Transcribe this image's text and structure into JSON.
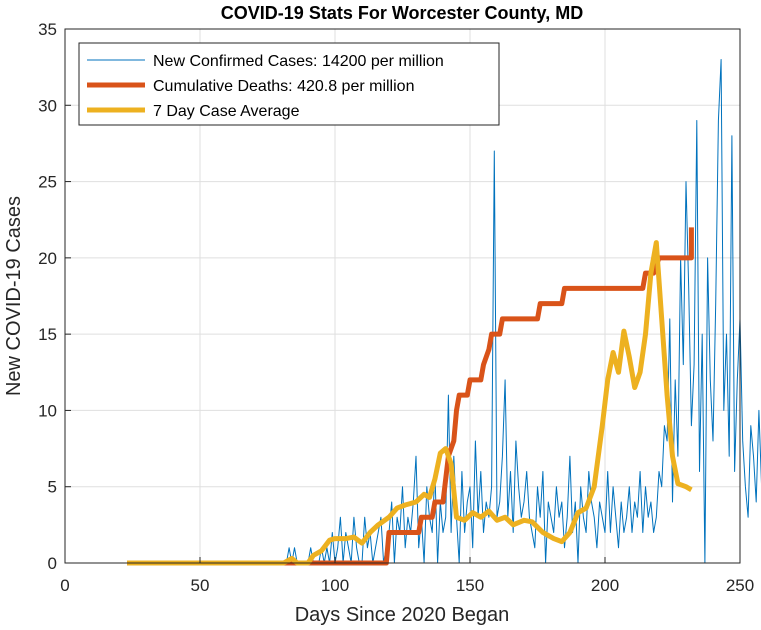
{
  "chart_data": {
    "type": "line",
    "title": "COVID-19 Stats For Worcester County, MD",
    "xlabel": "Days Since 2020 Began",
    "ylabel": "New COVID-19 Cases",
    "xlim": [
      0,
      250
    ],
    "ylim": [
      0,
      35
    ],
    "xticks": [
      "0",
      "50",
      "100",
      "150",
      "200",
      "250"
    ],
    "yticks": [
      "0",
      "5",
      "10",
      "15",
      "20",
      "25",
      "30",
      "35"
    ],
    "grid": true,
    "legend_position": "top-left",
    "colors": {
      "new_cases": "#0072BD",
      "deaths": "#D95319",
      "average": "#EDB120"
    },
    "series": [
      {
        "name": "New Confirmed Cases: 14200 per million",
        "x_start": 82,
        "values": [
          0,
          1,
          0,
          1,
          0,
          0,
          0,
          0,
          0,
          1,
          0,
          0,
          0,
          1,
          0,
          1,
          0,
          2,
          0,
          1,
          3,
          0,
          2,
          1,
          0,
          3,
          1,
          0,
          0,
          3,
          1,
          2,
          0,
          1,
          2,
          3,
          0,
          1,
          2,
          4,
          0,
          3,
          2,
          5,
          1,
          3,
          2,
          4,
          7,
          1,
          3,
          0,
          5,
          3,
          2,
          6,
          0,
          4,
          2,
          3,
          11,
          2,
          7,
          3,
          0,
          6,
          2,
          4,
          5,
          1,
          8,
          3,
          6,
          2,
          4,
          3,
          5,
          27,
          3,
          4,
          7,
          12,
          3,
          6,
          2,
          8,
          5,
          3,
          4,
          6,
          3,
          2,
          1,
          5,
          3,
          6,
          0,
          4,
          3,
          2,
          5,
          3,
          4,
          1,
          3,
          7,
          2,
          4,
          0,
          5,
          3,
          2,
          6,
          4,
          3,
          1,
          4,
          3,
          2,
          6,
          2,
          5,
          3,
          1,
          4,
          2,
          3,
          5,
          2,
          4,
          3,
          6,
          2,
          5,
          3,
          4,
          2,
          3,
          6,
          5,
          9,
          8,
          16,
          4,
          12,
          7,
          20,
          13,
          25,
          18,
          9,
          13,
          29,
          6,
          15,
          0,
          20,
          12,
          8,
          17,
          29,
          33,
          10,
          15,
          7,
          28,
          6,
          12,
          16,
          8,
          5,
          3,
          9,
          7,
          4,
          10,
          5,
          2,
          3,
          4
        ],
        "color": "#0072BD"
      },
      {
        "name": "Cumulative Deaths: 420.8 per million",
        "points": [
          [
            23,
            0
          ],
          [
            119,
            0
          ],
          [
            120,
            2
          ],
          [
            131,
            2
          ],
          [
            132,
            3
          ],
          [
            136,
            3
          ],
          [
            137,
            4
          ],
          [
            140,
            4
          ],
          [
            142,
            7
          ],
          [
            144,
            8
          ],
          [
            145,
            10
          ],
          [
            146,
            11
          ],
          [
            149,
            11
          ],
          [
            150,
            12
          ],
          [
            154,
            12
          ],
          [
            155,
            13
          ],
          [
            157,
            14
          ],
          [
            158,
            15
          ],
          [
            161,
            15
          ],
          [
            162,
            16
          ],
          [
            175,
            16
          ],
          [
            176,
            17
          ],
          [
            184,
            17
          ],
          [
            185,
            18
          ],
          [
            214,
            18
          ],
          [
            215,
            19
          ],
          [
            218,
            19
          ],
          [
            220,
            20
          ],
          [
            232,
            20
          ],
          [
            232,
            22
          ]
        ],
        "color": "#D95319"
      },
      {
        "name": "7 Day Case Average",
        "points": [
          [
            23,
            0
          ],
          [
            81,
            0
          ],
          [
            84,
            0.3
          ],
          [
            86,
            0
          ],
          [
            90,
            0
          ],
          [
            92,
            0.5
          ],
          [
            95,
            0.8
          ],
          [
            98,
            1.5
          ],
          [
            100,
            1.6
          ],
          [
            104,
            1.6
          ],
          [
            107,
            1.7
          ],
          [
            110,
            1.3
          ],
          [
            113,
            2
          ],
          [
            116,
            2.5
          ],
          [
            120,
            3
          ],
          [
            123,
            3.6
          ],
          [
            126,
            3.8
          ],
          [
            130,
            4
          ],
          [
            133,
            4.5
          ],
          [
            135,
            4.3
          ],
          [
            137,
            5.5
          ],
          [
            139,
            7.2
          ],
          [
            141,
            7.5
          ],
          [
            143,
            6.5
          ],
          [
            145,
            3
          ],
          [
            148,
            2.8
          ],
          [
            151,
            3.3
          ],
          [
            154,
            3
          ],
          [
            157,
            3.4
          ],
          [
            160,
            2.8
          ],
          [
            163,
            3
          ],
          [
            166,
            2.5
          ],
          [
            170,
            2.8
          ],
          [
            173,
            2.7
          ],
          [
            177,
            2
          ],
          [
            181,
            1.6
          ],
          [
            184,
            1.4
          ],
          [
            187,
            2
          ],
          [
            190,
            3.3
          ],
          [
            193,
            3.6
          ],
          [
            196,
            5
          ],
          [
            199,
            9
          ],
          [
            201,
            12
          ],
          [
            203,
            13.8
          ],
          [
            205,
            12.5
          ],
          [
            207,
            15.2
          ],
          [
            209,
            13.5
          ],
          [
            211,
            11.5
          ],
          [
            213,
            12.5
          ],
          [
            215,
            15
          ],
          [
            217,
            19
          ],
          [
            219,
            21
          ],
          [
            221,
            16
          ],
          [
            223,
            11
          ],
          [
            225,
            7
          ],
          [
            227,
            5.2
          ],
          [
            230,
            5
          ],
          [
            232,
            4.8
          ]
        ],
        "color": "#EDB120"
      }
    ]
  }
}
